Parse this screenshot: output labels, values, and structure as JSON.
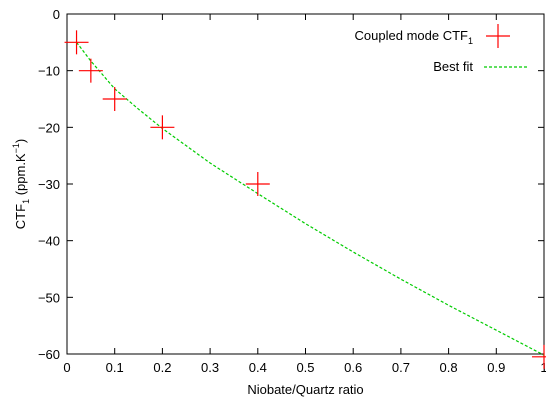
{
  "chart_data": {
    "type": "scatter",
    "xlabel": "Niobate/Quartz ratio",
    "ylabel": {
      "main": "CTF",
      "sub": "1",
      "unit_prefix": " (ppm.K",
      "unit_sup": "−1",
      "unit_suffix": ")"
    },
    "xlim": [
      0,
      1
    ],
    "ylim": [
      -60,
      0
    ],
    "x_ticks": [
      "0",
      "0.1",
      "0.2",
      "0.3",
      "0.4",
      "0.5",
      "0.6",
      "0.7",
      "0.8",
      "0.9",
      "1"
    ],
    "y_ticks": [
      "0",
      "−10",
      "−20",
      "−30",
      "−40",
      "−50",
      "−60"
    ],
    "grid": false,
    "legend_position": "top-right",
    "series": [
      {
        "name": "Coupled mode CTF",
        "name_sub": "1",
        "kind": "points",
        "marker": "plus",
        "color": "#ff0000",
        "points": [
          {
            "x": 0.02,
            "y": -5
          },
          {
            "x": 0.05,
            "y": -10
          },
          {
            "x": 0.1,
            "y": -15
          },
          {
            "x": 0.2,
            "y": -20
          },
          {
            "x": 0.4,
            "y": -30
          },
          {
            "x": 1.0,
            "y": -60.5
          }
        ]
      },
      {
        "name": "Best fit",
        "kind": "line",
        "style": "dashed",
        "color": "#00cc00",
        "points": [
          {
            "x": 0.02,
            "y": -5
          },
          {
            "x": 0.05,
            "y": -8.3
          },
          {
            "x": 0.1,
            "y": -13.2
          },
          {
            "x": 0.15,
            "y": -16.8
          },
          {
            "x": 0.2,
            "y": -20.2
          },
          {
            "x": 0.3,
            "y": -26.3
          },
          {
            "x": 0.4,
            "y": -31.7
          },
          {
            "x": 0.5,
            "y": -37.0
          },
          {
            "x": 0.6,
            "y": -42.0
          },
          {
            "x": 0.7,
            "y": -46.8
          },
          {
            "x": 0.8,
            "y": -51.4
          },
          {
            "x": 0.9,
            "y": -55.8
          },
          {
            "x": 1.0,
            "y": -60.2
          }
        ]
      }
    ]
  }
}
